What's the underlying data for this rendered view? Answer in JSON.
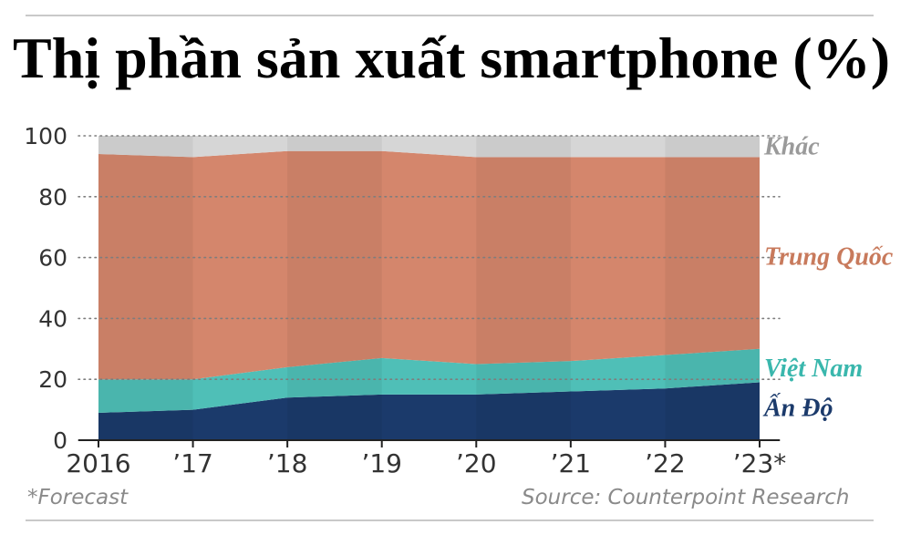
{
  "title": "Thị phần sản xuất smartphone (%)",
  "footnote": "*Forecast",
  "source": "Source: Counterpoint Research",
  "chart_data": {
    "type": "area",
    "stacked": true,
    "categories": [
      "2016",
      "’17",
      "’18",
      "’19",
      "’20",
      "’21",
      "’22",
      "’23*"
    ],
    "ylim": [
      0,
      100
    ],
    "yticks": [
      "0",
      "20",
      "40",
      "60",
      "80",
      "100"
    ],
    "grid": true,
    "legend": "right, inline labels",
    "series": [
      {
        "name": "Ấn Độ",
        "color": "#1b3a6b",
        "values": [
          9,
          10,
          14,
          15,
          15,
          16,
          17,
          19
        ]
      },
      {
        "name": "Việt Nam",
        "color": "#4fbfb7",
        "values": [
          11,
          10,
          10,
          12,
          10,
          10,
          11,
          11
        ]
      },
      {
        "name": "Trung Quốc",
        "color": "#d4866c",
        "values": [
          74,
          73,
          71,
          68,
          68,
          67,
          65,
          63
        ]
      },
      {
        "name": "Khác",
        "color": "#d6d6d6",
        "values": [
          6,
          7,
          5,
          5,
          7,
          7,
          7,
          7
        ]
      }
    ],
    "label_colors": [
      "#1b3a6b",
      "#3ab7ad",
      "#c87a5c",
      "#9a9a9a"
    ]
  }
}
